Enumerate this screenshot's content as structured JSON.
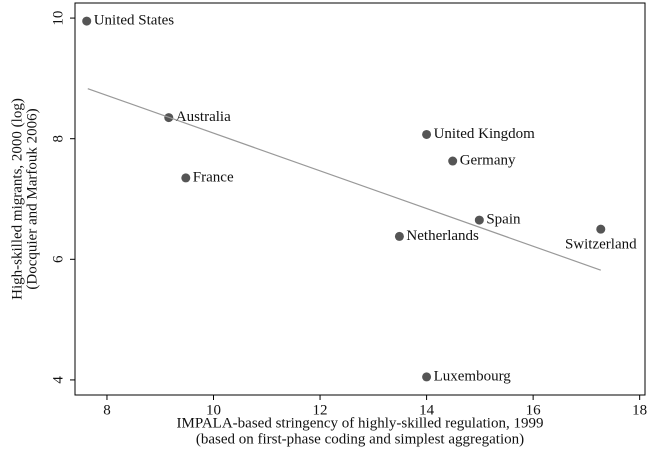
{
  "chart_data": {
    "type": "scatter",
    "x_label": [
      "IMPALA-based stringency of highly-skilled regulation, 1999",
      "(based on first-phase coding and simplest aggregation)"
    ],
    "y_label": [
      "High-skilled migrants, 2000 (log)",
      "(Docquier and Marfouk 2006)"
    ],
    "series": [
      {
        "color": "#555555",
        "labels": [
          "United States",
          "Australia",
          "France",
          "United Kingdom",
          "Germany",
          "Spain",
          "Netherlands",
          "Switzerland",
          "Luxembourg"
        ],
        "x": [
          7.62,
          9.16,
          9.48,
          14.0,
          14.49,
          14.99,
          13.49,
          17.27,
          14.0
        ],
        "values": [
          9.95,
          8.35,
          7.35,
          8.07,
          7.63,
          6.65,
          6.38,
          6.5,
          4.05
        ]
      },
      {
        "type": "line",
        "color": "#999999",
        "x": [
          7.64,
          17.27
        ],
        "values": [
          8.83,
          5.82
        ]
      }
    ],
    "xlim": [
      7.4,
      18.1
    ],
    "xticks": [
      8,
      10,
      12,
      14,
      16,
      18
    ],
    "ylim": [
      3.75,
      10.25
    ],
    "yticks": [
      4,
      6,
      8,
      10
    ]
  }
}
